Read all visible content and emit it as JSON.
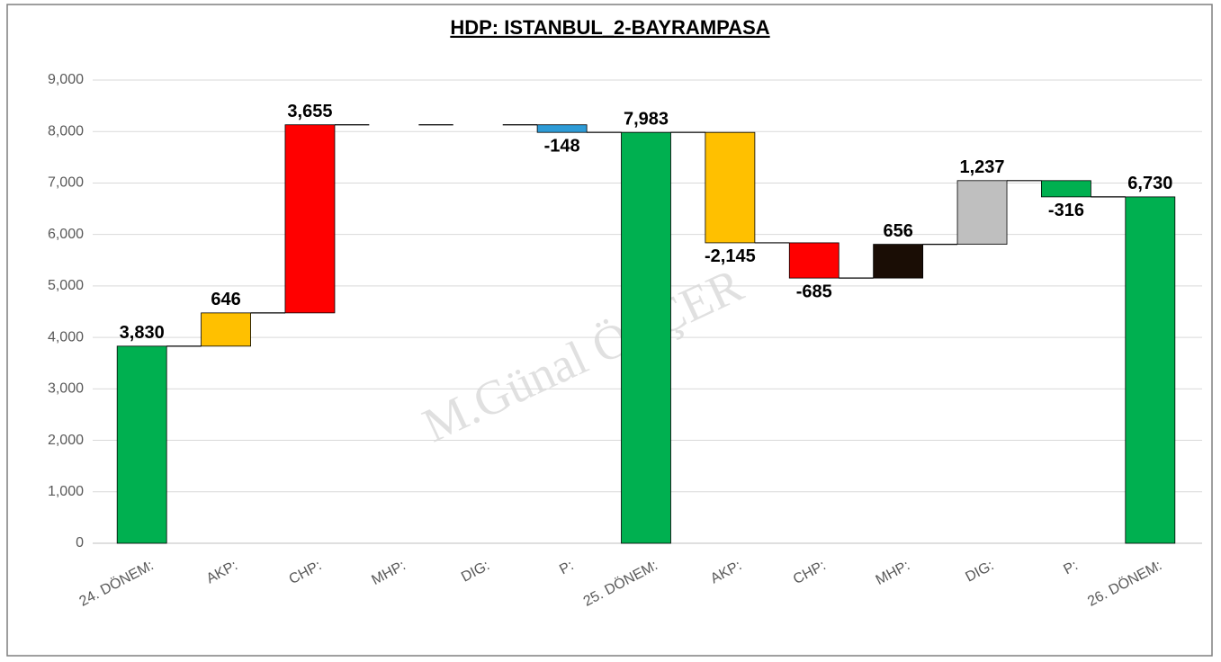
{
  "chart_data": {
    "type": "waterfall",
    "title": "HDP: ISTANBUL_2-BAYRAMPASA",
    "watermark": "M.Günal ÖLÇER",
    "categories": [
      "24. DÖNEM:",
      "AKP:",
      "CHP:",
      "MHP:",
      "DIG:",
      "P:",
      "25. DÖNEM:",
      "AKP:",
      "CHP:",
      "MHP:",
      "DIG:",
      "P:",
      "26. DÖNEM:"
    ],
    "values": [
      3830,
      646,
      3655,
      0,
      0,
      -148,
      7983,
      -2145,
      -685,
      656,
      1237,
      -316,
      6730
    ],
    "value_labels": [
      "3,830",
      "646",
      "3,655",
      null,
      null,
      "-148",
      "7,983",
      "-2,145",
      "-685",
      "656",
      "1,237",
      "-316",
      "6,730"
    ],
    "totals": [
      true,
      false,
      false,
      false,
      false,
      false,
      true,
      false,
      false,
      false,
      false,
      false,
      true
    ],
    "colors": [
      "#00b050",
      "#ffc000",
      "#ff0000",
      "#000000",
      "#bfbfbf",
      "#2e9bd6",
      "#00b050",
      "#ffc000",
      "#ff0000",
      "#1a0d05",
      "#bfbfbf",
      "#00b050",
      "#00b050"
    ],
    "ylim": [
      0,
      9000
    ],
    "yticks": [
      0,
      {
        "value": 1000,
        "label": "1,000"
      },
      {
        "value": 2000,
        "label": "2,000"
      },
      {
        "value": 3000,
        "label": "3,000"
      },
      {
        "value": 4000,
        "label": "4,000"
      },
      {
        "value": 5000,
        "label": "5,000"
      },
      {
        "value": 6000,
        "label": "6,000"
      },
      {
        "value": 7000,
        "label": "7,000"
      },
      {
        "value": 8000,
        "label": "8,000"
      },
      {
        "value": 9000,
        "label": "9,000"
      }
    ],
    "grid": true
  }
}
